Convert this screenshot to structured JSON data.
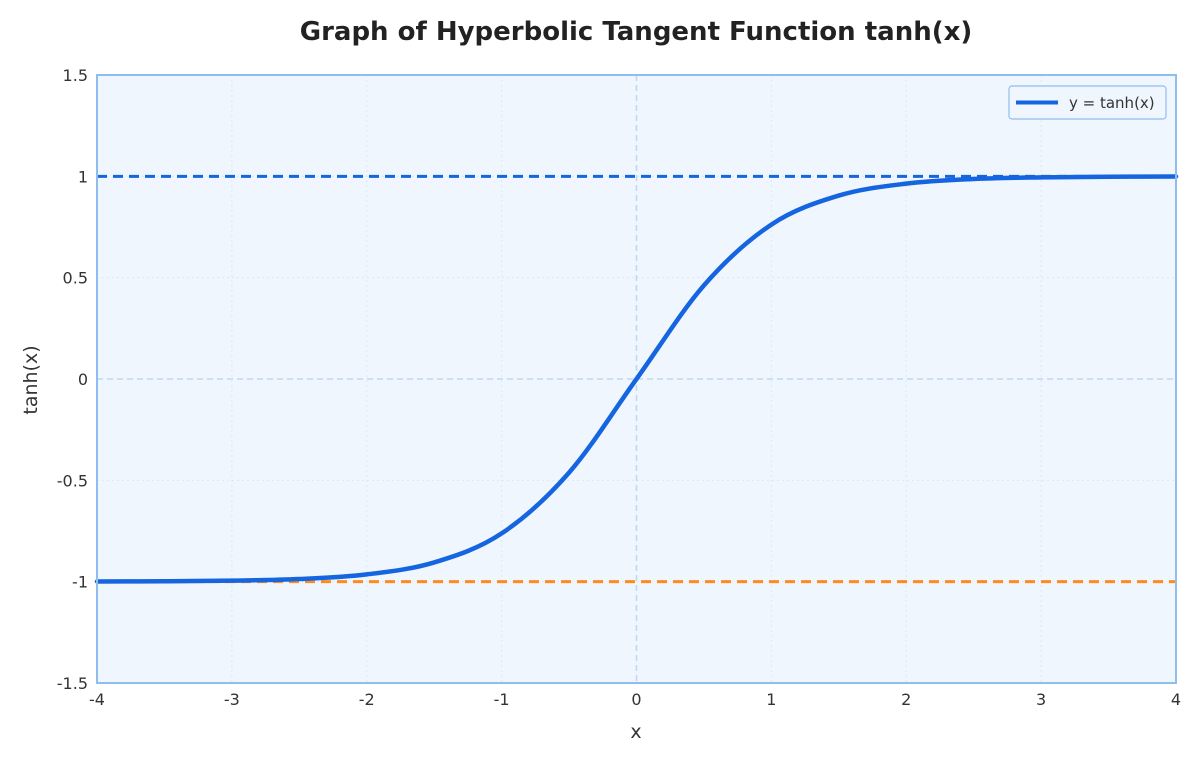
{
  "chart_data": {
    "type": "line",
    "title": "Graph of Hyperbolic Tangent Function tanh(x)",
    "xlabel": "x",
    "ylabel": "tanh(x)",
    "xlim": [
      -4,
      4
    ],
    "ylim": [
      -1.5,
      1.5
    ],
    "x_ticks": [
      -4,
      -3,
      -2,
      -1,
      0,
      1,
      2,
      3,
      4
    ],
    "x_tick_labels": [
      "-4",
      "-3",
      "-2",
      "-1",
      "0",
      "1",
      "2",
      "3",
      "4"
    ],
    "y_ticks": [
      1.5,
      1,
      0.5,
      0,
      -0.5,
      -1,
      -1.5
    ],
    "y_tick_labels": [
      "1.5",
      "1",
      "0.5",
      "0",
      "-0.5",
      "-1",
      "-1.5"
    ],
    "grid": true,
    "legend_position": "top-right",
    "series": [
      {
        "name": "y = tanh(x)",
        "color": "#1565e0",
        "x": [
          -4,
          -3.5,
          -3,
          -2.5,
          -2,
          -1.5,
          -1,
          -0.5,
          0,
          0.5,
          1,
          1.5,
          2,
          2.5,
          3,
          3.5,
          4
        ],
        "y": [
          -0.999,
          -0.998,
          -0.995,
          -0.987,
          -0.964,
          -0.905,
          -0.762,
          -0.462,
          0,
          0.462,
          0.762,
          0.905,
          0.964,
          0.987,
          0.995,
          0.998,
          0.999
        ]
      }
    ],
    "reference_lines": [
      {
        "y": 1,
        "color": "#1565e0",
        "style": "dashed"
      },
      {
        "y": -1,
        "color": "#ff8c1a",
        "style": "dashed"
      }
    ],
    "colors": {
      "plot_background": "#f0f6fd",
      "plot_border": "#90bdf0",
      "zero_line": "#bdd8f5",
      "grid": "#dbe8f7"
    }
  }
}
